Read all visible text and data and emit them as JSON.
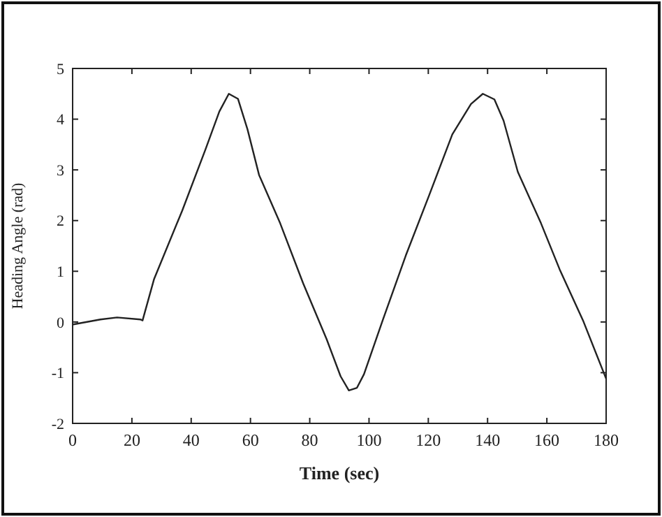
{
  "chart_data": {
    "type": "line",
    "xlabel": "Time (sec)",
    "ylabel": "Heading Angle (rad)",
    "xlim": [
      0,
      180
    ],
    "ylim": [
      -2,
      5
    ],
    "xticks": [
      0,
      20,
      40,
      60,
      80,
      100,
      120,
      140,
      160,
      180
    ],
    "yticks": [
      -2,
      -1,
      0,
      1,
      2,
      3,
      4,
      5
    ],
    "grid": false,
    "marker": "none",
    "line_style": "solid",
    "series": [
      {
        "color": "#222222",
        "x": [
          0,
          9.4,
          15,
          22.8,
          23.6,
          27.5,
          37,
          44.8,
          49.5,
          52.7,
          55.8,
          59,
          62.9,
          70,
          77.8,
          85.7,
          90.4,
          93.2,
          95.9,
          98.3,
          104.6,
          112.4,
          120.3,
          128.1,
          134.4,
          138.4,
          142.3,
          145.4,
          150.2,
          158,
          164.3,
          172.2,
          180
        ],
        "values": [
          -0.05,
          0.05,
          0.09,
          0.05,
          0.03,
          0.85,
          2.2,
          3.4,
          4.15,
          4.5,
          4.4,
          3.8,
          2.9,
          1.95,
          0.76,
          -0.34,
          -1.07,
          -1.35,
          -1.3,
          -1.03,
          0.03,
          1.31,
          2.5,
          3.7,
          4.3,
          4.5,
          4.39,
          3.97,
          2.96,
          1.95,
          1.04,
          0.03,
          -1.12
        ]
      }
    ]
  }
}
